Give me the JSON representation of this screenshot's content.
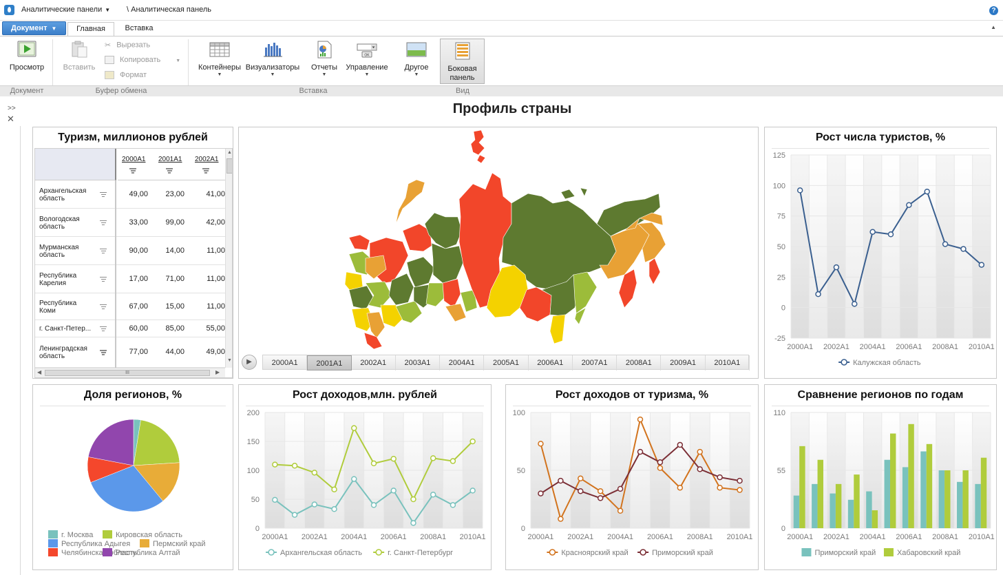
{
  "topbar": {
    "panels_menu": "Аналитические панели",
    "breadcrumb": "\\ Аналитическая панель",
    "help": "?"
  },
  "tabs": {
    "document_button": "Документ",
    "home": "Главная",
    "insert": "Вставка"
  },
  "ribbon": {
    "preview": "Просмотр",
    "paste": "Вставить",
    "cut": "Вырезать",
    "copy": "Копировать",
    "format": "Формат",
    "containers": "Контейнеры",
    "visualizers": "Визуализаторы",
    "reports": "Отчеты",
    "controls": "Управление",
    "other": "Другое",
    "side_panel_1": "Боковая",
    "side_panel_2": "панель",
    "group_document": "Документ",
    "group_clipboard": "Буфер обмена",
    "group_insert": "Вставка",
    "group_view": "Вид"
  },
  "page": {
    "title": "Профиль страны",
    "expand": ">>",
    "close": "✕"
  },
  "table_panel": {
    "title": "Туризм, миллионов рублей",
    "columns": [
      "2000A1",
      "2001A1",
      "2002A1"
    ],
    "rows": [
      {
        "label": "Архангельская область",
        "line1": "Архангельская",
        "line2": "область",
        "values": [
          "49,00",
          "23,00",
          "41,00"
        ]
      },
      {
        "label": "Вологодская область",
        "line1": "Вологодская",
        "line2": "область",
        "values": [
          "33,00",
          "99,00",
          "42,00"
        ]
      },
      {
        "label": "Мурманская область",
        "line1": "Мурманская",
        "line2": "область",
        "values": [
          "90,00",
          "14,00",
          "11,00"
        ]
      },
      {
        "label": "Республика Карелия",
        "line1": "Республика",
        "line2": "Карелия",
        "values": [
          "17,00",
          "71,00",
          "11,00"
        ]
      },
      {
        "label": "Республика Коми",
        "line1": "Республика",
        "line2": "Коми",
        "values": [
          "67,00",
          "15,00",
          "11,00"
        ]
      },
      {
        "label": "г. Санкт-Петербург",
        "line1": "г. Санкт-Петер...",
        "line2": "",
        "values": [
          "60,00",
          "85,00",
          "55,00"
        ]
      },
      {
        "label": "Ленинградская область",
        "line1": "Ленинградская",
        "line2": "область",
        "values": [
          "77,00",
          "44,00",
          "49,00"
        ]
      }
    ],
    "scroll_mark": "III"
  },
  "map_panel": {
    "timeline": [
      "2000A1",
      "2001A1",
      "2002A1",
      "2003A1",
      "2004A1",
      "2005A1",
      "2006A1",
      "2007A1",
      "2008A1",
      "2009A1",
      "2010A1"
    ],
    "selected_period": "2001A1",
    "colors": {
      "dark_green": "#5e7a30",
      "green": "#9cbc3a",
      "yellow": "#f4d200",
      "orange": "#e8a135",
      "red": "#f2462a"
    }
  },
  "chart_data": [
    {
      "type": "line",
      "title": "Рост числа туристов, %",
      "categories": [
        "2000A1",
        "2001A1",
        "2002A1",
        "2003A1",
        "2004A1",
        "2005A1",
        "2006A1",
        "2007A1",
        "2008A1",
        "2009A1",
        "2010A1"
      ],
      "x_tick_labels": [
        "2000A1",
        "2002A1",
        "2004A1",
        "2006A1",
        "2008A1",
        "2010A1"
      ],
      "ylim": [
        -25,
        125
      ],
      "y_ticks": [
        "125",
        "100",
        "75",
        "50",
        "25",
        "0",
        "-25"
      ],
      "series": [
        {
          "name": "Калужская область",
          "color": "#3a5f8f",
          "values": [
            96,
            11,
            33,
            3,
            62,
            60,
            84,
            95,
            52,
            48,
            35
          ]
        }
      ],
      "grid": true,
      "legend": "bottom"
    },
    {
      "type": "pie",
      "title": "Доля регионов, %",
      "series": [
        {
          "name": "г. Москва",
          "value": 2.5,
          "color": "#79c2bd"
        },
        {
          "name": "Кировская область",
          "value": 21.5,
          "color": "#b0cc3c"
        },
        {
          "name": "Пермский край",
          "value": 15,
          "color": "#e8ac38"
        },
        {
          "name": "Республика Адыгея",
          "value": 30,
          "color": "#5b98ea"
        },
        {
          "name": "Челябинская область",
          "value": 9,
          "color": "#f4472c"
        },
        {
          "name": "Республика Алтай",
          "value": 22,
          "color": "#9146ad"
        }
      ],
      "legend_order": [
        "г. Москва",
        "Кировская область",
        "Республика Адыгея",
        "Пермский край",
        "Челябинская область",
        "Республика Алтай"
      ],
      "legend": "bottom"
    },
    {
      "type": "line",
      "title": "Рост доходов,млн. рублей",
      "categories": [
        "2000A1",
        "2001A1",
        "2002A1",
        "2003A1",
        "2004A1",
        "2005A1",
        "2006A1",
        "2007A1",
        "2008A1",
        "2009A1",
        "2010A1"
      ],
      "x_tick_labels": [
        "2000A1",
        "2002A1",
        "2004A1",
        "2006A1",
        "2008A1",
        "2010A1"
      ],
      "ylim": [
        0,
        200
      ],
      "y_ticks": [
        "200",
        "150",
        "100",
        "50",
        "0"
      ],
      "series": [
        {
          "name": "Архангельская область",
          "color": "#79c2bd",
          "values": [
            49,
            23,
            41,
            33,
            85,
            40,
            65,
            9,
            58,
            40,
            65
          ]
        },
        {
          "name": "г. Санкт-Петербург",
          "color": "#b0cc3c",
          "values": [
            110,
            108,
            96,
            67,
            173,
            112,
            120,
            50,
            121,
            116,
            150
          ]
        }
      ],
      "grid": true,
      "legend": "bottom"
    },
    {
      "type": "line",
      "title": "Рост доходов от туризма, %",
      "categories": [
        "2000A1",
        "2001A1",
        "2002A1",
        "2003A1",
        "2004A1",
        "2005A1",
        "2006A1",
        "2007A1",
        "2008A1",
        "2009A1",
        "2010A1"
      ],
      "x_tick_labels": [
        "2000A1",
        "2002A1",
        "2004A1",
        "2006A1",
        "2008A1",
        "2010A1"
      ],
      "ylim": [
        0,
        100
      ],
      "y_ticks": [
        "100",
        "50",
        "0"
      ],
      "series": [
        {
          "name": "Красноярский край",
          "color": "#d2731d",
          "values": [
            73,
            8,
            43,
            32,
            15,
            94,
            52,
            35,
            66,
            35,
            33
          ]
        },
        {
          "name": "Приморский край",
          "color": "#7b2e35",
          "values": [
            30,
            41,
            32,
            26,
            34,
            66,
            57,
            72,
            51,
            44,
            41
          ]
        }
      ],
      "grid": true,
      "legend": "bottom"
    },
    {
      "type": "bar",
      "title": "Сравнение регионов по годам",
      "categories": [
        "2000A1",
        "2001A1",
        "2002A1",
        "2003A1",
        "2004A1",
        "2005A1",
        "2006A1",
        "2007A1",
        "2008A1",
        "2009A1",
        "2010A1"
      ],
      "x_tick_labels": [
        "2000A1",
        "2002A1",
        "2004A1",
        "2006A1",
        "2008A1",
        "2010A1"
      ],
      "ylim": [
        0,
        110
      ],
      "y_ticks": [
        "110",
        "55",
        "0"
      ],
      "series": [
        {
          "name": "Приморский край",
          "color": "#79c2bd",
          "values": [
            31,
            42,
            33,
            27,
            35,
            65,
            58,
            73,
            55,
            44,
            42
          ]
        },
        {
          "name": "Хабаровский край",
          "color": "#b0cc3c",
          "values": [
            78,
            65,
            42,
            51,
            17,
            90,
            99,
            80,
            55,
            55,
            67
          ]
        }
      ],
      "grid": true,
      "legend": "bottom"
    }
  ]
}
